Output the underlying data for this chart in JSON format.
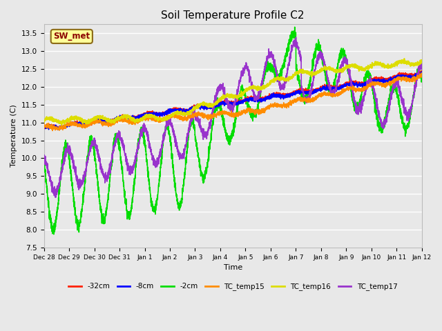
{
  "title": "Soil Temperature Profile C2",
  "xlabel": "Time",
  "ylabel": "Temperature (C)",
  "ylim": [
    7.5,
    13.75
  ],
  "bg_color": "#e8e8e8",
  "annotation_text": "SW_met",
  "annotation_color": "#8B0000",
  "annotation_bg": "#ffff99",
  "annotation_border": "#8B6914",
  "xtick_labels": [
    "Dec 28",
    "Dec 29",
    "Dec 30",
    "Dec 31",
    "Jan 1",
    "Jan 2",
    "Jan 3",
    "Jan 4",
    "Jan 5",
    "Jan 6",
    "Jan 7",
    "Jan 8",
    "Jan 9",
    "Jan 10",
    "Jan 11",
    "Jan 12"
  ],
  "xtick_hours": [
    0,
    24,
    48,
    72,
    96,
    120,
    144,
    168,
    192,
    216,
    240,
    264,
    288,
    312,
    336,
    360
  ],
  "series": {
    "-32cm": {
      "color": "#ff2000",
      "lw": 1.2
    },
    "-8cm": {
      "color": "#0000ff",
      "lw": 1.2
    },
    "-2cm": {
      "color": "#00dd00",
      "lw": 1.2
    },
    "TC_temp15": {
      "color": "#ff8c00",
      "lw": 1.2
    },
    "TC_temp16": {
      "color": "#dddd00",
      "lw": 1.4
    },
    "TC_temp17": {
      "color": "#9933cc",
      "lw": 1.2
    }
  },
  "legend_labels": [
    "-32cm",
    "-8cm",
    "-2cm",
    "TC_temp15",
    "TC_temp16",
    "TC_temp17"
  ],
  "legend_colors": [
    "#ff2000",
    "#0000ff",
    "#00dd00",
    "#ff8c00",
    "#dddd00",
    "#9933cc"
  ]
}
